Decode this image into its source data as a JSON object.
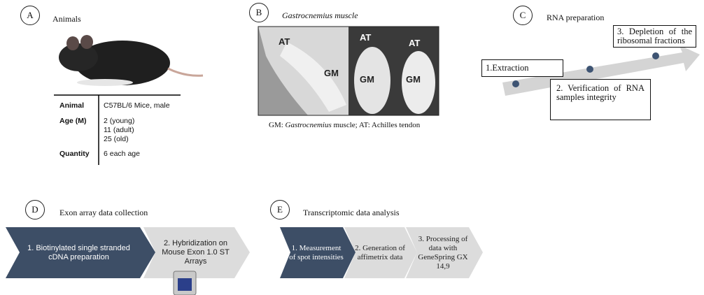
{
  "panels": [
    {
      "label": "A",
      "title": "Animals",
      "table": {
        "rows": [
          {
            "label": "Animal",
            "lines": [
              "C57BL/6 Mice, male"
            ]
          },
          {
            "label": "Age (M)",
            "lines": [
              "2 (young)",
              "11 (adult)",
              "25 (old)"
            ]
          },
          {
            "label": "Quantity",
            "lines": [
              "6 each age"
            ]
          }
        ]
      }
    },
    {
      "label": "B",
      "title": "Gastrocnemius muscle",
      "photo_labels": [
        "AT",
        "GM",
        "AT",
        "GM",
        "AT",
        "GM"
      ],
      "caption": [
        "GM: ",
        "Gastrocnemius",
        " muscle; AT: Achilles tendon"
      ]
    },
    {
      "label": "C",
      "title": "RNA preparation",
      "steps": [
        "1.Extraction",
        "2. Verification of RNA samples integrity",
        "3. Depletion of the ribosomal fractions"
      ]
    },
    {
      "label": "D",
      "title": "Exon array data collection",
      "steps": [
        "1. Biotinylated single stranded cDNA preparation",
        "2. Hybridization on Mouse Exon 1.0 ST Arrays"
      ]
    },
    {
      "label": "E",
      "title": "Transcriptomic data analysis",
      "steps": [
        "1. Measurement of spot intensities",
        "2. Generation of affimetrix data",
        "3. Processing of data with GeneSpring GX 14,9"
      ]
    }
  ]
}
